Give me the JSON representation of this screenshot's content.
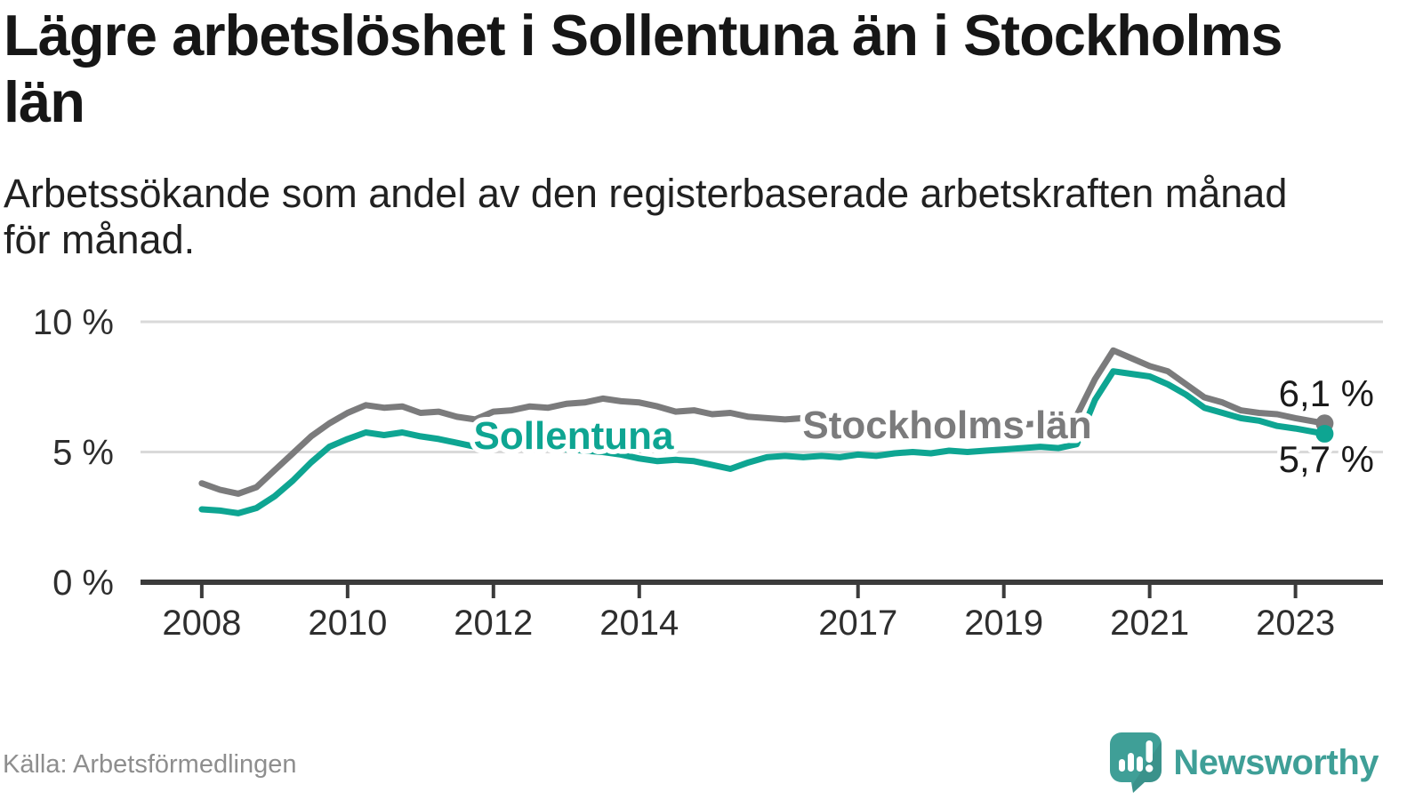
{
  "title": "Lägre arbetslöshet i Sollentuna än i Stockholms län",
  "title_lines": [
    "Lägre arbetslöshet i Sollentuna än i Stockholms",
    "län"
  ],
  "subtitle": "Arbetssökande som andel av den registerbaserade arbetskraften månad för månad.",
  "subtitle_lines": [
    "Arbetssökande som andel av den registerbaserade arbetskraften månad",
    "för månad."
  ],
  "source": "Källa: Arbetsförmedlingen",
  "brand": {
    "name": "Newsworthy",
    "color": "#3f9f97"
  },
  "colors": {
    "title": "#161616",
    "subtitle": "#212121",
    "grid": "#d9d9d9",
    "axis": "#3b3b3b",
    "axis_text": "#2e2e2e",
    "end_label": "#1a1a1a",
    "source_text": "#8e8e8e",
    "background": "#ffffff",
    "sollentuna": "#0ea592",
    "stockholms_lan": "#7b7b7c",
    "brand_teal": "#3f9f97"
  },
  "chart_data": {
    "type": "line",
    "title": "Lägre arbetslöshet i Sollentuna än i Stockholms län",
    "subtitle": "Arbetssökande som andel av den registerbaserade arbetskraften månad för månad.",
    "source": "Källa: Arbetsförmedlingen",
    "unit": "%",
    "grid": "horizontal",
    "legend_position": "inline-labels",
    "ylim": [
      0,
      10
    ],
    "xlim": [
      2007.16,
      2024.2
    ],
    "y_ticks": [
      {
        "value": 0,
        "label": "0 %"
      },
      {
        "value": 5,
        "label": "5 %"
      },
      {
        "value": 10,
        "label": "10 %"
      }
    ],
    "x_ticks": [
      {
        "year": 2008,
        "label": "2008"
      },
      {
        "year": 2010,
        "label": "2010"
      },
      {
        "year": 2012,
        "label": "2012"
      },
      {
        "year": 2014,
        "label": "2014"
      },
      {
        "year": 2017,
        "label": "2017"
      },
      {
        "year": 2019,
        "label": "2019"
      },
      {
        "year": 2021,
        "label": "2021"
      },
      {
        "year": 2023,
        "label": "2023"
      }
    ],
    "x": [
      2008,
      2008.25,
      2008.5,
      2008.75,
      2009,
      2009.25,
      2009.5,
      2009.75,
      2010,
      2010.25,
      2010.5,
      2010.75,
      2011,
      2011.25,
      2011.5,
      2011.75,
      2012,
      2012.25,
      2012.5,
      2012.75,
      2013,
      2013.25,
      2013.5,
      2013.75,
      2014,
      2014.25,
      2014.5,
      2014.75,
      2015,
      2015.25,
      2015.5,
      2015.75,
      2016,
      2016.25,
      2016.5,
      2016.75,
      2017,
      2017.25,
      2017.5,
      2017.75,
      2018,
      2018.25,
      2018.5,
      2018.75,
      2019,
      2019.25,
      2019.5,
      2019.75,
      2020,
      2020.25,
      2020.5,
      2020.75,
      2021,
      2021.25,
      2021.5,
      2021.75,
      2022,
      2022.25,
      2022.5,
      2022.75,
      2023,
      2023.4
    ],
    "series": [
      {
        "id": "stockholms-lan",
        "name": "Stockholms län",
        "label": "Stockholms län",
        "color": "#7b7b7c",
        "end_label": "6,1 %",
        "end_value": 6.1,
        "values": [
          3.8,
          3.55,
          3.4,
          3.65,
          4.3,
          4.95,
          5.6,
          6.1,
          6.5,
          6.8,
          6.7,
          6.75,
          6.5,
          6.55,
          6.35,
          6.25,
          6.55,
          6.6,
          6.75,
          6.7,
          6.85,
          6.9,
          7.05,
          6.95,
          6.9,
          6.75,
          6.55,
          6.6,
          6.45,
          6.5,
          6.35,
          6.3,
          6.25,
          6.3,
          6.2,
          6.15,
          6.1,
          6.05,
          6.0,
          6.0,
          5.95,
          5.95,
          5.9,
          5.95,
          6.0,
          6.05,
          6.1,
          6.2,
          6.4,
          7.8,
          8.9,
          8.6,
          8.3,
          8.1,
          7.6,
          7.1,
          6.9,
          6.6,
          6.5,
          6.45,
          6.3,
          6.1
        ]
      },
      {
        "id": "sollentuna",
        "name": "Sollentuna",
        "label": "Sollentuna",
        "color": "#0ea592",
        "end_label": "5,7 %",
        "end_value": 5.7,
        "values": [
          2.8,
          2.75,
          2.65,
          2.85,
          3.3,
          3.9,
          4.6,
          5.2,
          5.5,
          5.75,
          5.65,
          5.75,
          5.6,
          5.5,
          5.35,
          5.2,
          5.3,
          5.25,
          5.2,
          5.15,
          5.1,
          5.05,
          5.0,
          4.9,
          4.75,
          4.65,
          4.7,
          4.65,
          4.5,
          4.35,
          4.6,
          4.8,
          4.85,
          4.8,
          4.85,
          4.8,
          4.9,
          4.85,
          4.95,
          5.0,
          4.95,
          5.05,
          5.0,
          5.05,
          5.1,
          5.15,
          5.2,
          5.15,
          5.3,
          7.0,
          8.1,
          8.0,
          7.9,
          7.6,
          7.2,
          6.7,
          6.5,
          6.3,
          6.2,
          6.0,
          5.9,
          5.7
        ]
      }
    ]
  }
}
